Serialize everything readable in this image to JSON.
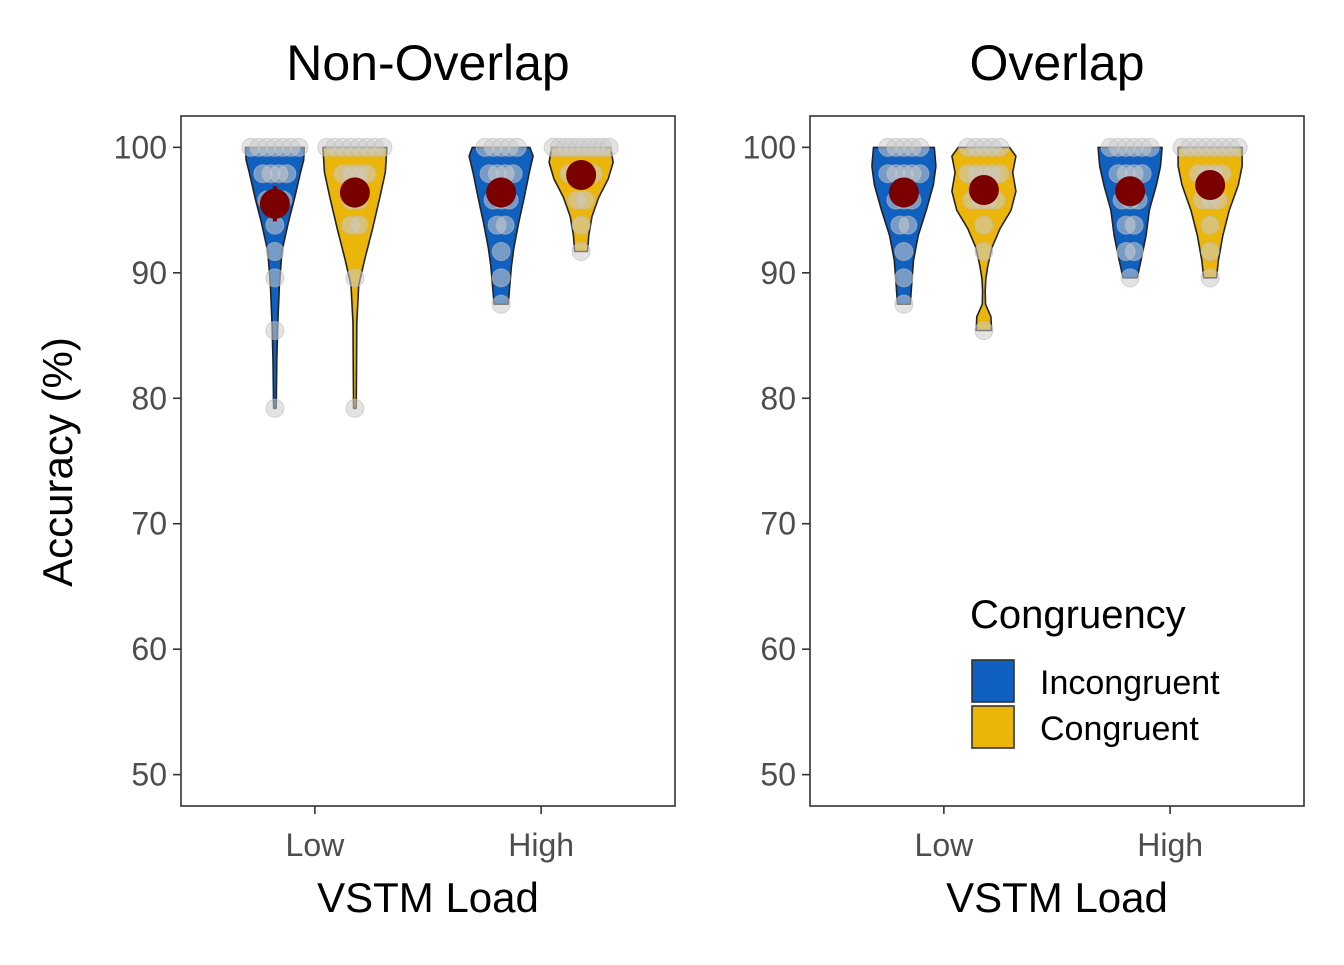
{
  "chart_data": {
    "type": "violin",
    "ylabel": "Accuracy (%)",
    "xlabel": "VSTM Load",
    "ylim": [
      47.5,
      102.5
    ],
    "yticks": [
      "50",
      "60",
      "70",
      "80",
      "90",
      "100"
    ],
    "categories": [
      "Low",
      "High"
    ],
    "grid": false,
    "legend": {
      "title": "Congruency",
      "position": "bottom-right of the Overlap panel",
      "items": [
        {
          "label": "Incongruent",
          "color": "#1060c0"
        },
        {
          "label": "Congruent",
          "color": "#ecb50a"
        }
      ]
    },
    "colors": {
      "incongruent": "#1060c0",
      "congruent": "#ecb50a",
      "mean_point": "#7a0000",
      "raw_point": "#cccccc",
      "frame": "#333333"
    },
    "panels": [
      {
        "title": "Non-Overlap",
        "groups": [
          {
            "load": "Low",
            "congruency": "Incongruent",
            "mean": 95.5,
            "ci": [
              94.1,
              96.9
            ],
            "min": 79.2,
            "max": 100,
            "points": [
              100,
              100,
              100,
              100,
              100,
              100,
              100,
              97.9,
              97.9,
              97.9,
              97.9,
              95.8,
              95.8,
              95.8,
              93.8,
              91.7,
              89.6,
              85.4,
              79.2
            ],
            "profile": [
              [
                79.2,
                0.04
              ],
              [
                83,
                0.06
              ],
              [
                86,
                0.09
              ],
              [
                89,
                0.14
              ],
              [
                91.7,
                0.22
              ],
              [
                94,
                0.42
              ],
              [
                96,
                0.62
              ],
              [
                98,
                0.8
              ],
              [
                99,
                0.9
              ],
              [
                100,
                0.92
              ]
            ]
          },
          {
            "load": "Low",
            "congruency": "Congruent",
            "mean": 96.4,
            "ci": [
              95.2,
              97.6
            ],
            "min": 79.2,
            "max": 100,
            "points": [
              100,
              100,
              100,
              100,
              100,
              100,
              100,
              100,
              97.9,
              97.9,
              97.9,
              97.9,
              95.8,
              95.8,
              93.8,
              93.8,
              89.6,
              79.2
            ],
            "profile": [
              [
                79.2,
                0.04
              ],
              [
                82,
                0.05
              ],
              [
                86,
                0.06
              ],
              [
                89,
                0.12
              ],
              [
                91,
                0.3
              ],
              [
                93.5,
                0.55
              ],
              [
                96,
                0.78
              ],
              [
                98,
                0.95
              ],
              [
                100,
                1.0
              ]
            ]
          },
          {
            "load": "High",
            "congruency": "Incongruent",
            "mean": 96.4,
            "ci": [
              95.3,
              97.5
            ],
            "min": 87.5,
            "max": 100,
            "points": [
              100,
              100,
              100,
              100,
              100,
              97.9,
              97.9,
              97.9,
              97.9,
              95.8,
              95.8,
              95.8,
              93.8,
              93.8,
              91.7,
              89.6,
              87.5
            ],
            "profile": [
              [
                87.5,
                0.22
              ],
              [
                89,
                0.27
              ],
              [
                90.5,
                0.32
              ],
              [
                92,
                0.4
              ],
              [
                94,
                0.55
              ],
              [
                96,
                0.72
              ],
              [
                98,
                0.88
              ],
              [
                99.3,
                1.0
              ],
              [
                100,
                0.9
              ]
            ]
          },
          {
            "load": "High",
            "congruency": "Congruent",
            "mean": 97.8,
            "ci": [
              96.8,
              98.8
            ],
            "min": 91.7,
            "max": 100,
            "points": [
              100,
              100,
              100,
              100,
              100,
              100,
              100,
              100,
              100,
              100,
              97.9,
              97.9,
              97.9,
              97.9,
              95.8,
              95.8,
              93.8,
              91.7
            ],
            "profile": [
              [
                91.7,
                0.2
              ],
              [
                93,
                0.24
              ],
              [
                94.5,
                0.34
              ],
              [
                96,
                0.55
              ],
              [
                97.5,
                0.85
              ],
              [
                98.8,
                1.0
              ],
              [
                100,
                0.92
              ]
            ]
          }
        ]
      },
      {
        "title": "Overlap",
        "groups": [
          {
            "load": "Low",
            "congruency": "Incongruent",
            "mean": 96.4,
            "ci": [
              95.6,
              97.2
            ],
            "min": 87.5,
            "max": 100,
            "points": [
              100,
              100,
              100,
              100,
              100,
              97.9,
              97.9,
              97.9,
              97.9,
              97.9,
              95.8,
              95.8,
              95.8,
              93.8,
              93.8,
              91.7,
              89.6,
              87.5
            ],
            "profile": [
              [
                87.5,
                0.2
              ],
              [
                89,
                0.24
              ],
              [
                91,
                0.3
              ],
              [
                93,
                0.45
              ],
              [
                95,
                0.7
              ],
              [
                97,
                0.92
              ],
              [
                98.5,
                1.0
              ],
              [
                100,
                0.95
              ]
            ]
          },
          {
            "load": "Low",
            "congruency": "Congruent",
            "mean": 96.6,
            "ci": [
              95.8,
              97.4
            ],
            "min": 85.4,
            "max": 100,
            "points": [
              100,
              100,
              100,
              100,
              100,
              97.9,
              97.9,
              97.9,
              97.9,
              97.9,
              95.8,
              95.8,
              95.8,
              95.8,
              93.8,
              91.7,
              85.4
            ],
            "profile": [
              [
                85.4,
                0.24
              ],
              [
                86.5,
                0.22
              ],
              [
                87.5,
                0.05
              ],
              [
                88.5,
                0.04
              ],
              [
                89.5,
                0.06
              ],
              [
                90.5,
                0.12
              ],
              [
                92,
                0.25
              ],
              [
                93.5,
                0.5
              ],
              [
                95,
                0.85
              ],
              [
                96.5,
                1.0
              ],
              [
                98,
                0.9
              ],
              [
                99.3,
                1.0
              ],
              [
                100,
                0.8
              ]
            ]
          },
          {
            "load": "High",
            "congruency": "Incongruent",
            "mean": 96.5,
            "ci": [
              95.6,
              97.4
            ],
            "min": 89.6,
            "max": 100,
            "points": [
              100,
              100,
              100,
              100,
              100,
              100,
              97.9,
              97.9,
              97.9,
              97.9,
              95.8,
              95.8,
              95.8,
              93.8,
              93.8,
              91.7,
              91.7,
              89.6
            ],
            "profile": [
              [
                89.6,
                0.22
              ],
              [
                91,
                0.34
              ],
              [
                93,
                0.5
              ],
              [
                95,
                0.6
              ],
              [
                97,
                0.82
              ],
              [
                98.5,
                0.95
              ],
              [
                100,
                1.0
              ]
            ]
          },
          {
            "load": "High",
            "congruency": "Congruent",
            "mean": 97.0,
            "ci": [
              95.9,
              98.1
            ],
            "min": 89.6,
            "max": 100,
            "points": [
              100,
              100,
              100,
              100,
              100,
              100,
              100,
              100,
              97.9,
              97.9,
              97.9,
              97.9,
              95.8,
              95.8,
              95.8,
              93.8,
              91.7,
              89.6
            ],
            "profile": [
              [
                89.6,
                0.2
              ],
              [
                91,
                0.26
              ],
              [
                93,
                0.4
              ],
              [
                95,
                0.6
              ],
              [
                97,
                0.88
              ],
              [
                98.5,
                1.0
              ],
              [
                100,
                1.0
              ]
            ]
          }
        ]
      }
    ]
  }
}
